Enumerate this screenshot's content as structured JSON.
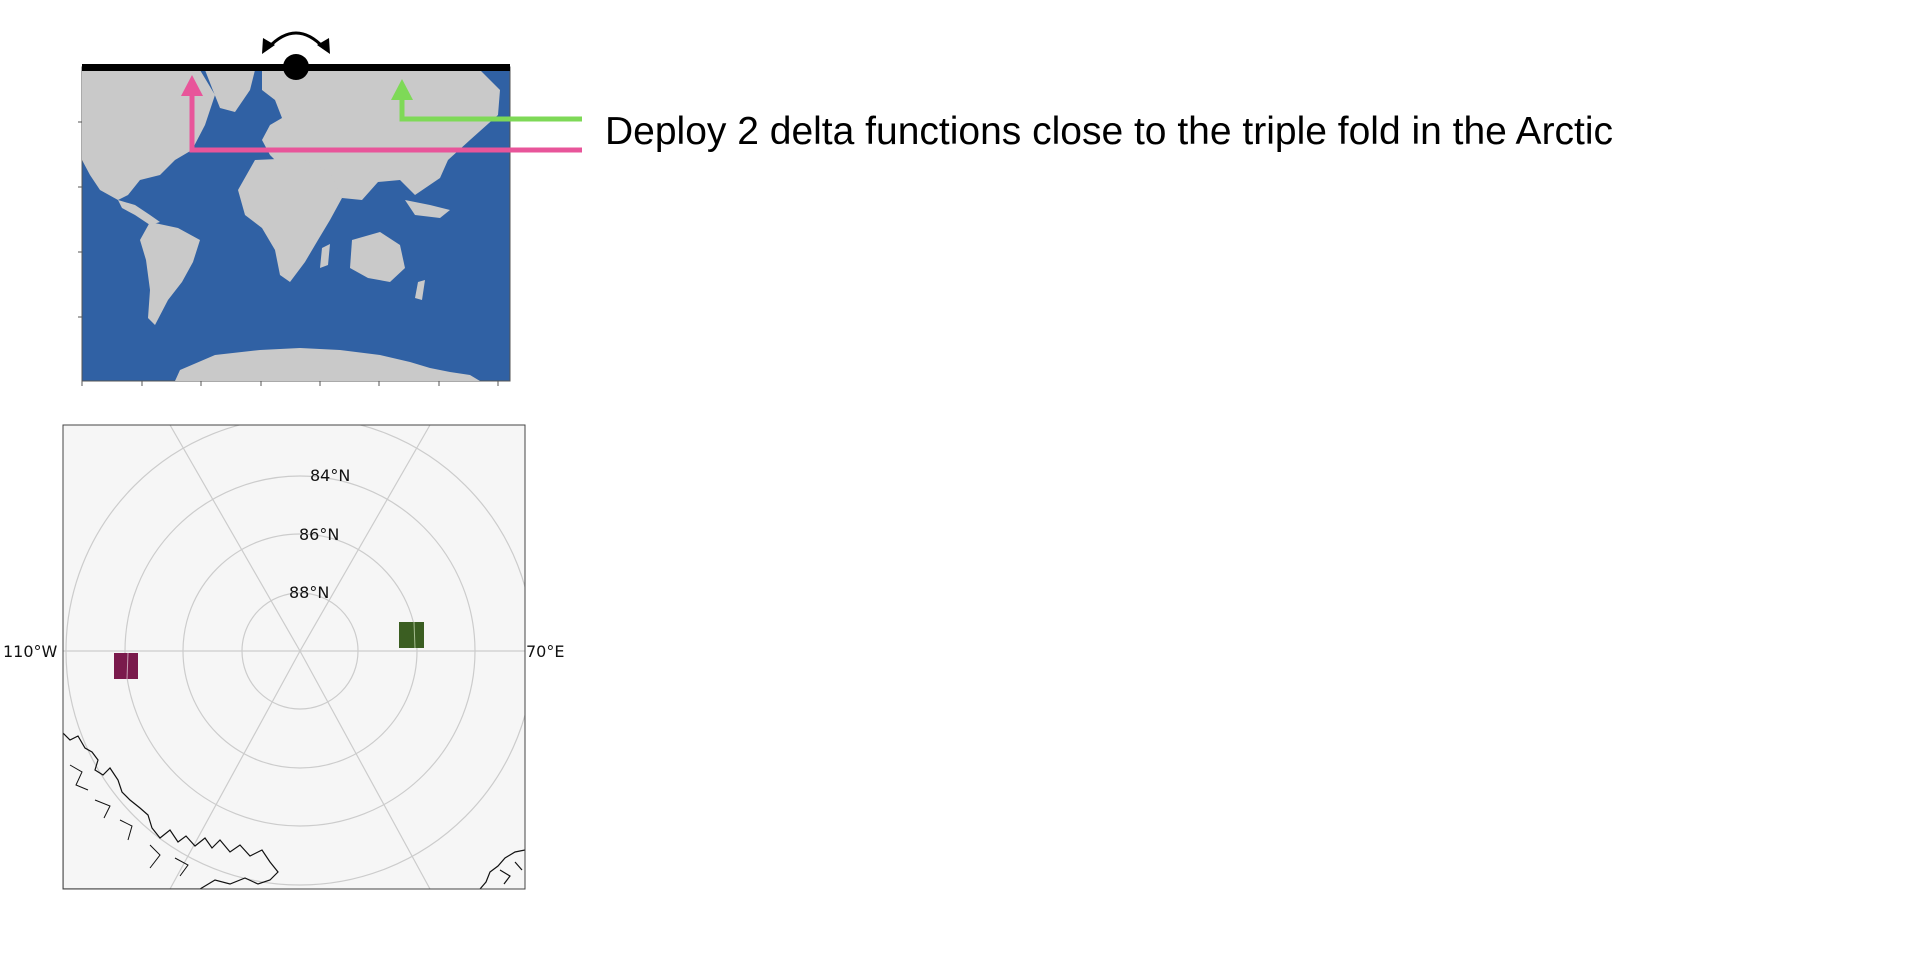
{
  "annotation": {
    "text": "Deploy 2 delta functions close to the triple fold in the Arctic"
  },
  "world_map": {
    "ocean_color": "#3061a4",
    "land_color": "#c9c9c9",
    "fold_line_color": "#000000",
    "pink_arrow_color": "#e8559a",
    "green_arrow_color": "#7ed957"
  },
  "polar_map": {
    "background": "#f6f6f6",
    "grid_color": "#cccccc",
    "lat_labels": [
      "84°N",
      "86°N",
      "88°N"
    ],
    "lon_label_left": "110°W",
    "lon_label_right": "70°E",
    "delta_left_color": "#7a1a4c",
    "delta_right_color": "#3b5e22"
  }
}
